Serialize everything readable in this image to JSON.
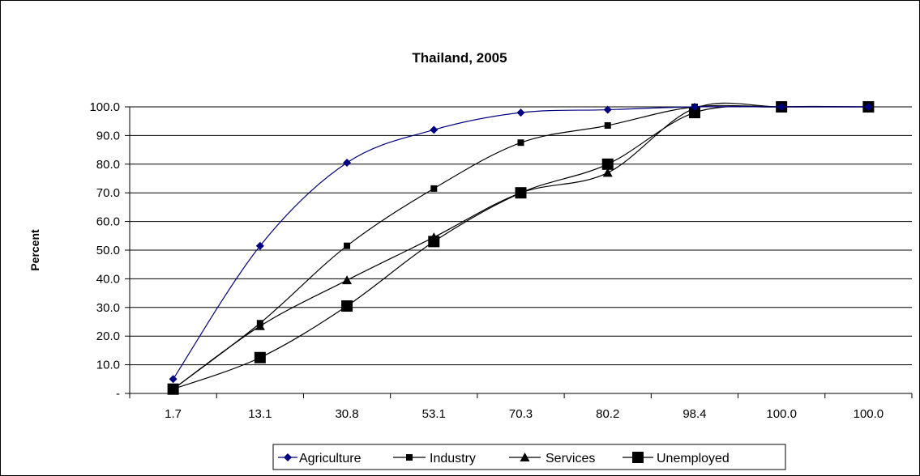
{
  "chart_data": {
    "type": "line",
    "title": "Thailand, 2005",
    "xlabel": "",
    "ylabel": "Percent",
    "categories": [
      "1.7",
      "13.1",
      "30.8",
      "53.1",
      "70.3",
      "80.2",
      "98.4",
      "100.0",
      "100.0"
    ],
    "y_tick_labels": [
      "-",
      "10.0",
      "20.0",
      "30.0",
      "40.0",
      "50.0",
      "60.0",
      "70.0",
      "80.0",
      "90.0",
      "100.0"
    ],
    "ylim": [
      0,
      100
    ],
    "grid": "horizontal",
    "legend_position": "bottom",
    "series": [
      {
        "name": "Agriculture",
        "color": "#000080",
        "marker": "diamond",
        "values": [
          5.0,
          51.5,
          80.5,
          92.0,
          98.0,
          99.0,
          100.0,
          100.0,
          100.0
        ]
      },
      {
        "name": "Industry",
        "color": "#000000",
        "marker": "small-square",
        "values": [
          1.5,
          24.5,
          51.5,
          71.5,
          87.5,
          93.5,
          100.0,
          100.0,
          100.0
        ]
      },
      {
        "name": "Services",
        "color": "#000000",
        "marker": "triangle",
        "values": [
          1.5,
          23.5,
          39.5,
          54.5,
          70.0,
          77.0,
          99.5,
          100.0,
          100.0
        ]
      },
      {
        "name": "Unemployed",
        "color": "#000000",
        "marker": "large-square",
        "values": [
          1.5,
          12.5,
          30.5,
          53.0,
          70.0,
          80.0,
          98.0,
          100.0,
          100.0
        ]
      }
    ]
  }
}
